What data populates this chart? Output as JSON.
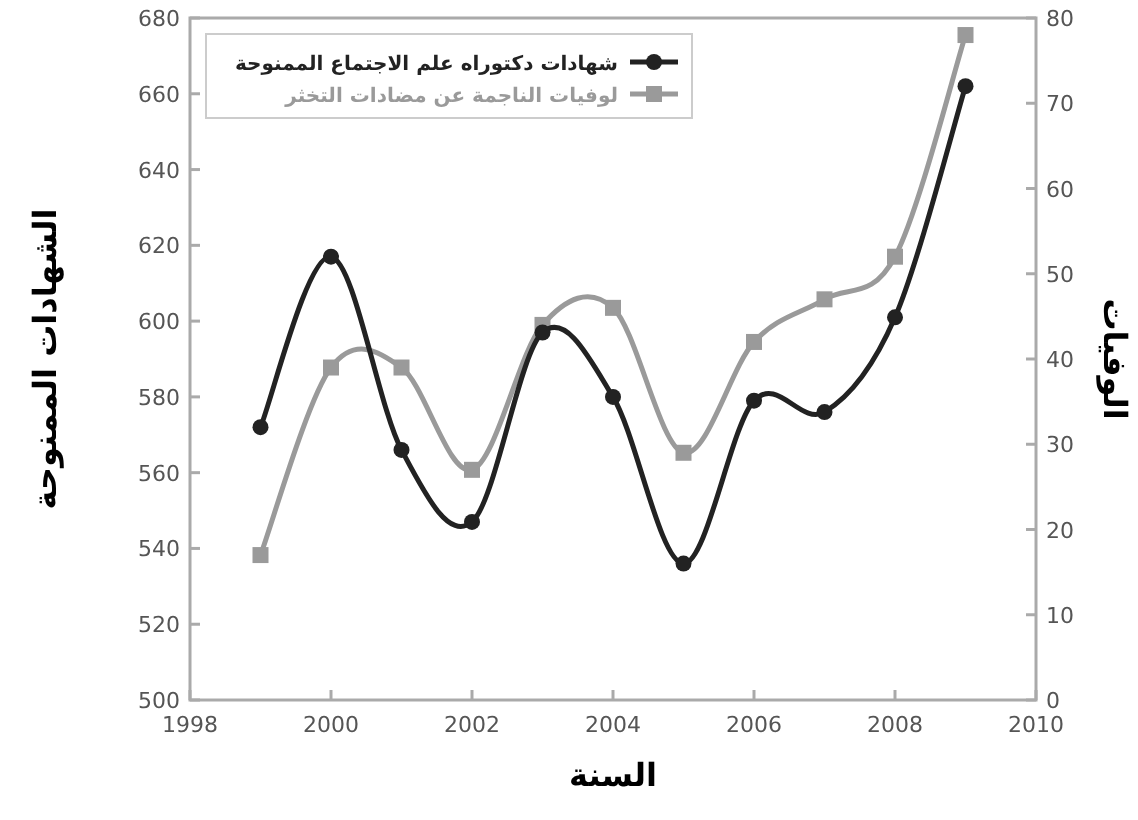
{
  "chart_data": {
    "type": "line",
    "xlabel": "السنة",
    "ylabel": "الشهادات الممنوحة",
    "y2label": "الوفيات",
    "x": [
      1999,
      2000,
      2001,
      2002,
      2003,
      2004,
      2005,
      2006,
      2007,
      2008,
      2009
    ],
    "series": [
      {
        "name": "شهادات دكتوراه علم الاجتماع الممنوحة",
        "color": "#222222",
        "marker": "circle",
        "values": [
          572,
          617,
          566,
          547,
          597,
          580,
          536,
          579,
          576,
          601,
          662
        ]
      },
      {
        "name": "لوفيات الناجمة عن مضادات التخثر",
        "color": "#9a9a9a",
        "marker": "square",
        "axis": "y2",
        "values": [
          17,
          39,
          39,
          27,
          44,
          46,
          29,
          42,
          47,
          52,
          78
        ]
      }
    ],
    "xlim": [
      1998,
      2010
    ],
    "xticks": [
      1998,
      2000,
      2002,
      2004,
      2006,
      2008,
      2010
    ],
    "ylim": [
      500,
      680
    ],
    "yticks": [
      500,
      520,
      540,
      560,
      580,
      600,
      620,
      640,
      660,
      680
    ],
    "y2lim": [
      0,
      80
    ],
    "y2ticks": [
      0,
      10,
      20,
      30,
      40,
      50,
      60,
      70,
      80
    ],
    "grid": false,
    "legend": "top left",
    "line_style": "solid"
  }
}
